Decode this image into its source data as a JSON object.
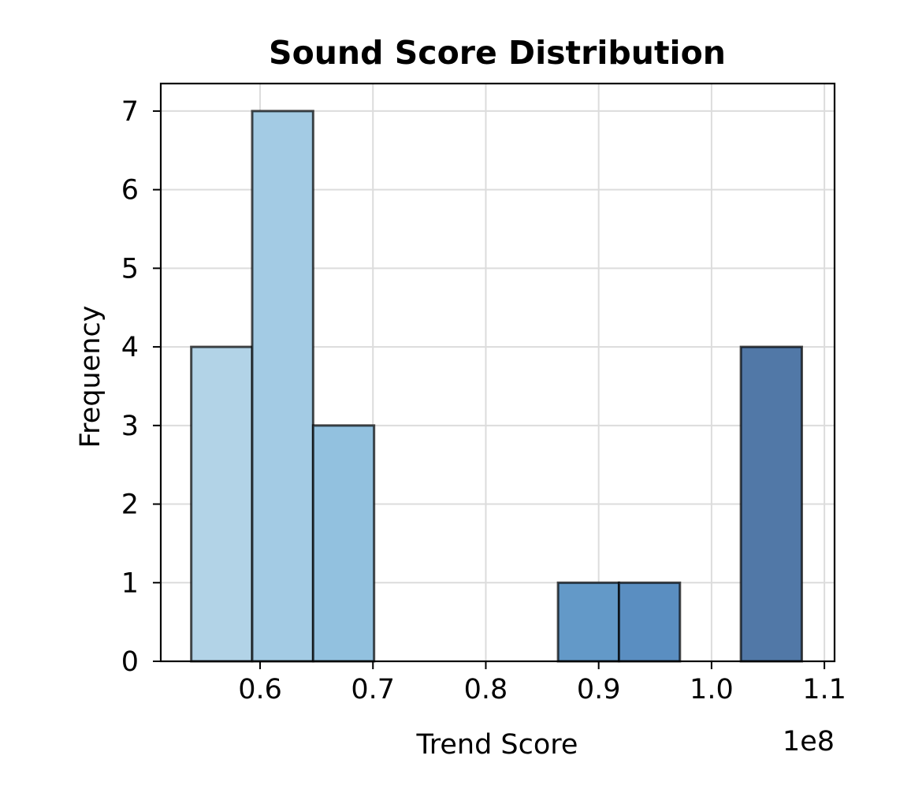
{
  "chart_data": {
    "type": "bar",
    "title": "Sound Score Distribution",
    "xlabel": "Trend Score",
    "ylabel": "Frequency",
    "x_offset_label": "1e8",
    "xlim": [
      0.512,
      1.109
    ],
    "ylim": [
      0,
      7.35
    ],
    "xticks": [
      0.6,
      0.7,
      0.8,
      0.9,
      1.0,
      1.1
    ],
    "xtick_labels": [
      "0.6",
      "0.7",
      "0.8",
      "0.9",
      "1.0",
      "1.1"
    ],
    "yticks": [
      0,
      1,
      2,
      3,
      4,
      5,
      6,
      7
    ],
    "ytick_labels": [
      "0",
      "1",
      "2",
      "3",
      "4",
      "5",
      "6",
      "7"
    ],
    "grid": true,
    "bins": [
      {
        "x0": 0.539,
        "x1": 0.593,
        "count": 4,
        "color": "#b2d3e7"
      },
      {
        "x0": 0.593,
        "x1": 0.647,
        "count": 7,
        "color": "#a3cbe4"
      },
      {
        "x0": 0.647,
        "x1": 0.701,
        "count": 3,
        "color": "#92c1df"
      },
      {
        "x0": 0.701,
        "x1": 0.755,
        "count": 0,
        "color": "#84b7da"
      },
      {
        "x0": 0.755,
        "x1": 0.81,
        "count": 0,
        "color": "#76acd4"
      },
      {
        "x0": 0.81,
        "x1": 0.864,
        "count": 0,
        "color": "#6ea3cf"
      },
      {
        "x0": 0.864,
        "x1": 0.918,
        "count": 1,
        "color": "#6399c8"
      },
      {
        "x0": 0.918,
        "x1": 0.972,
        "count": 1,
        "color": "#5a8ec1"
      },
      {
        "x0": 0.972,
        "x1": 1.026,
        "count": 0,
        "color": "#557fb2"
      },
      {
        "x0": 1.026,
        "x1": 1.08,
        "count": 4,
        "color": "#5178a7"
      }
    ]
  }
}
